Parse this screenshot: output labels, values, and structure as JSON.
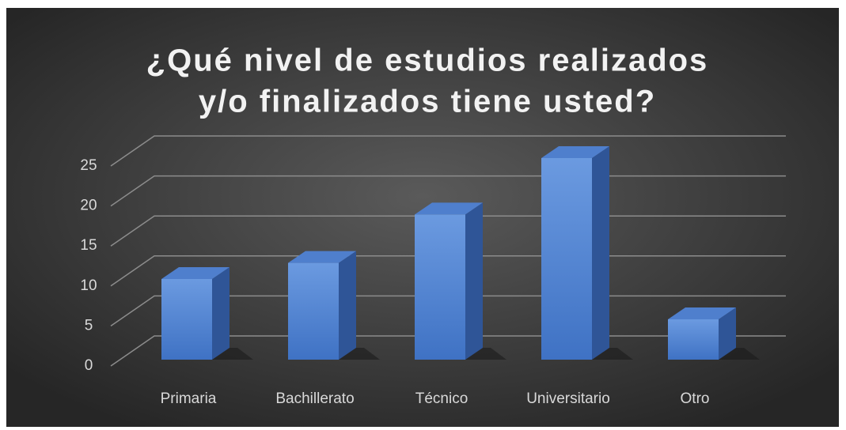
{
  "chart_data": {
    "type": "bar",
    "title": [
      "¿Qué nivel de estudios realizados",
      "y/o finalizados tiene usted?"
    ],
    "categories": [
      "Primaria",
      "Bachillerato",
      "Técnico",
      "Universitario",
      "Otro"
    ],
    "values": [
      10,
      12,
      18,
      25,
      5
    ],
    "color": "#4472c4",
    "ylim": [
      0,
      25
    ],
    "yticks": [
      0,
      5,
      10,
      15,
      20,
      25
    ],
    "grid": true
  }
}
